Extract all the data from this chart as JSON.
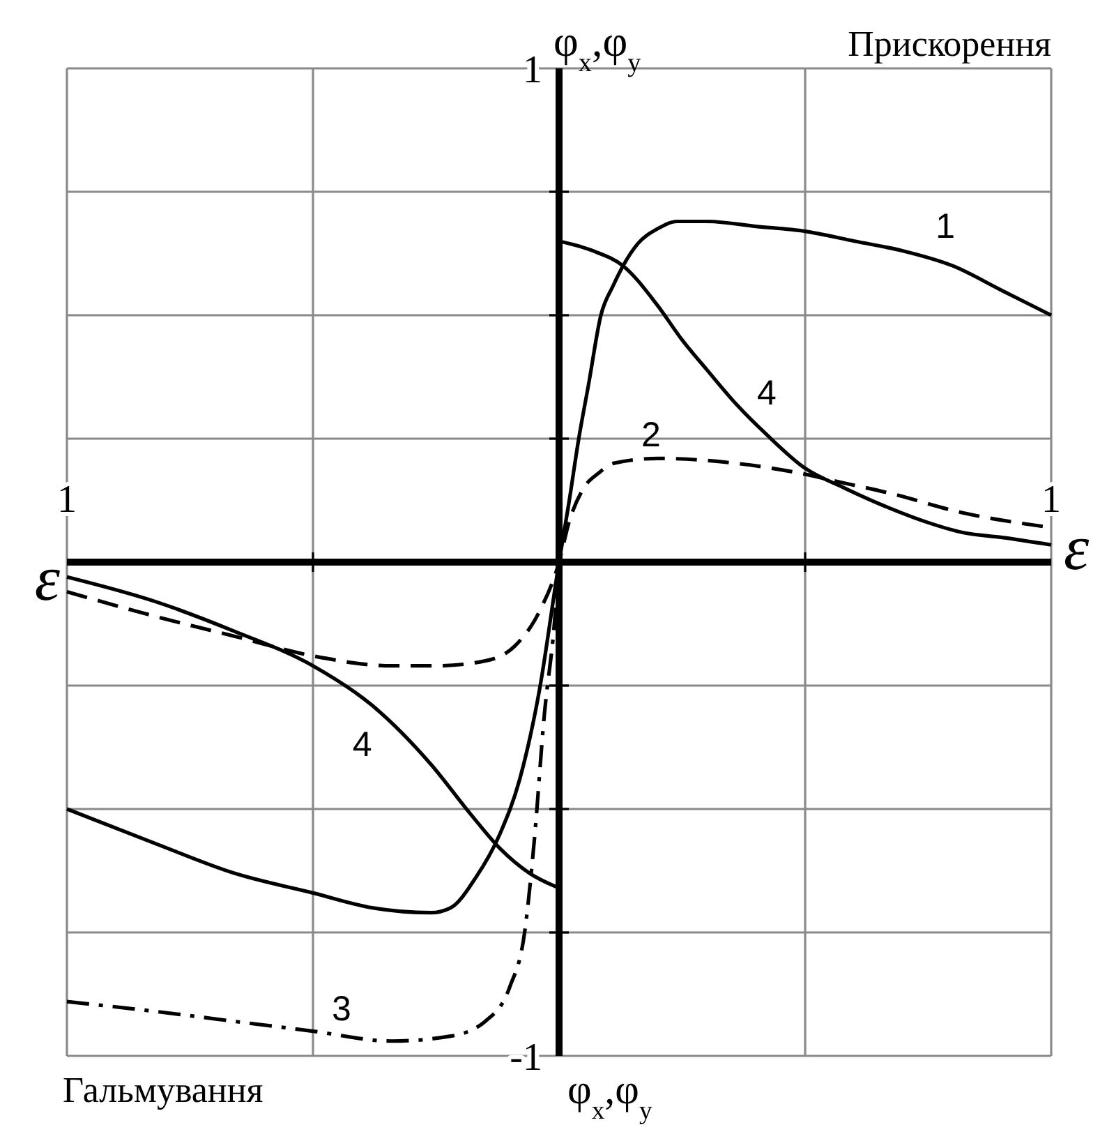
{
  "chart_data": {
    "type": "line",
    "xlabel": "ε",
    "ylabel": "φ$_{x}$,φ$_{y}$",
    "annotations": [
      "Прискорення",
      "Гальмування"
    ],
    "xlim": [
      -1,
      1
    ],
    "ylim": [
      -1,
      1
    ],
    "xticks": [
      {
        "value": -1,
        "label": "1"
      },
      {
        "value": -0.5,
        "label": null
      },
      {
        "value": 0.5,
        "label": null
      },
      {
        "value": 1,
        "label": "1"
      }
    ],
    "yticks": [
      -1,
      {
        "value": -0.75,
        "label": null
      },
      {
        "value": -0.5,
        "label": null
      },
      {
        "value": -0.25,
        "label": null
      },
      {
        "value": 0.25,
        "label": null
      },
      {
        "value": 0.5,
        "label": null
      },
      {
        "value": 0.75,
        "label": null
      },
      1
    ],
    "grid": true,
    "series": [
      {
        "name": "1",
        "color": "#000000",
        "line_style": "solid",
        "x": [
          -1,
          -0.82,
          -0.66,
          -0.5,
          -0.38,
          -0.26,
          -0.22,
          -0.17,
          -0.12,
          -0.08,
          -0.04,
          0,
          0.02,
          0.04,
          0.06,
          0.085,
          0.11,
          0.13,
          0.16,
          0.2,
          0.24,
          0.3,
          0.4,
          0.5,
          0.6,
          0.7,
          0.8,
          0.9,
          1
        ],
        "values": [
          -0.5,
          -0.57,
          -0.63,
          -0.67,
          -0.7,
          -0.71,
          -0.7,
          -0.64,
          -0.55,
          -0.44,
          -0.26,
          0,
          0.12,
          0.25,
          0.36,
          0.5,
          0.56,
          0.6,
          0.645,
          0.675,
          0.69,
          0.69,
          0.68,
          0.67,
          0.65,
          0.63,
          0.6,
          0.55,
          0.5
        ]
      },
      {
        "name": "2",
        "color": "#000000",
        "line_style": "dashed",
        "x": [
          -1,
          -0.82,
          -0.66,
          -0.5,
          -0.34,
          -0.25,
          -0.15,
          -0.09,
          -0.04,
          0,
          0.02,
          0.05,
          0.08,
          0.11,
          0.2,
          0.36,
          0.49,
          0.58,
          0.67,
          0.82,
          1
        ],
        "values": [
          -0.06,
          -0.11,
          -0.15,
          -0.19,
          -0.21,
          -0.21,
          -0.2,
          -0.17,
          -0.1,
          0,
          0.08,
          0.15,
          0.18,
          0.2,
          0.21,
          0.2,
          0.18,
          0.16,
          0.14,
          0.1,
          0.07
        ]
      },
      {
        "name": "3",
        "color": "#000000",
        "line_style": "dashdot",
        "x": [
          -1,
          -0.82,
          -0.66,
          -0.5,
          -0.34,
          -0.22,
          -0.15,
          -0.1,
          -0.07,
          -0.05,
          -0.03,
          -0.01,
          0
        ],
        "values": [
          -0.89,
          -0.91,
          -0.93,
          -0.95,
          -0.97,
          -0.96,
          -0.93,
          -0.86,
          -0.75,
          -0.56,
          -0.31,
          -0.13,
          0
        ]
      },
      {
        "name": "4",
        "color": "#000000",
        "line_style": "solid",
        "x": [
          -1,
          -0.82,
          -0.66,
          -0.5,
          -0.38,
          -0.26,
          -0.18,
          -0.12,
          -0.06,
          0,
          null,
          0,
          0.07,
          0.13,
          0.2,
          0.25,
          0.3,
          0.36,
          0.42,
          0.5,
          0.58,
          0.67,
          0.75,
          0.82,
          0.9,
          1
        ],
        "values": [
          -0.03,
          -0.08,
          -0.14,
          -0.21,
          -0.29,
          -0.41,
          -0.51,
          -0.58,
          -0.63,
          -0.66,
          null,
          0.65,
          0.63,
          0.6,
          0.52,
          0.45,
          0.39,
          0.32,
          0.26,
          0.19,
          0.15,
          0.11,
          0.08,
          0.06,
          0.05,
          0.035
        ]
      }
    ]
  }
}
